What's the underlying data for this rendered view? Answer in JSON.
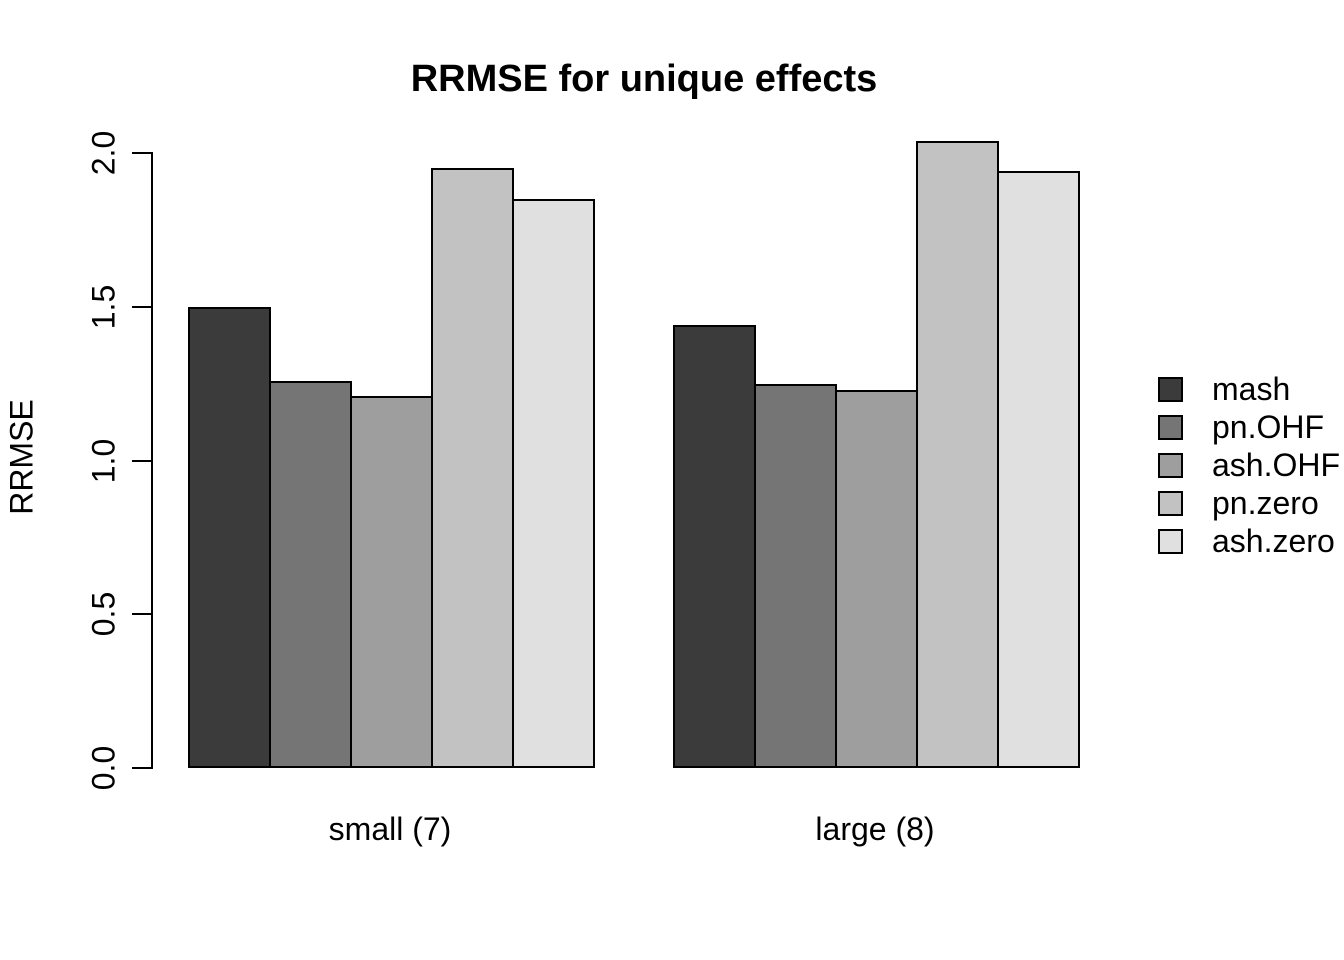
{
  "chart_data": {
    "type": "bar",
    "title": "RRMSE for unique effects",
    "xlabel": "",
    "ylabel": "RRMSE",
    "categories": [
      "small (7)",
      "large (8)"
    ],
    "series": [
      {
        "name": "mash",
        "values": [
          1.5,
          1.44
        ],
        "color": "#3B3B3B"
      },
      {
        "name": "pn.OHF",
        "values": [
          1.26,
          1.25
        ],
        "color": "#757575"
      },
      {
        "name": "ash.OHF",
        "values": [
          1.21,
          1.23
        ],
        "color": "#9E9E9E"
      },
      {
        "name": "pn.zero",
        "values": [
          1.95,
          2.04
        ],
        "color": "#C2C2C2"
      },
      {
        "name": "ash.zero",
        "values": [
          1.85,
          1.94
        ],
        "color": "#E0E0E0"
      }
    ],
    "yticks": [
      "0.0",
      "0.5",
      "1.0",
      "1.5",
      "2.0"
    ],
    "ylim": [
      0,
      2.0
    ],
    "grid": false,
    "legend_position": "right",
    "bar_border_color": "#000000",
    "axis_color": "#000000",
    "background_color": "#FFFFFF"
  }
}
